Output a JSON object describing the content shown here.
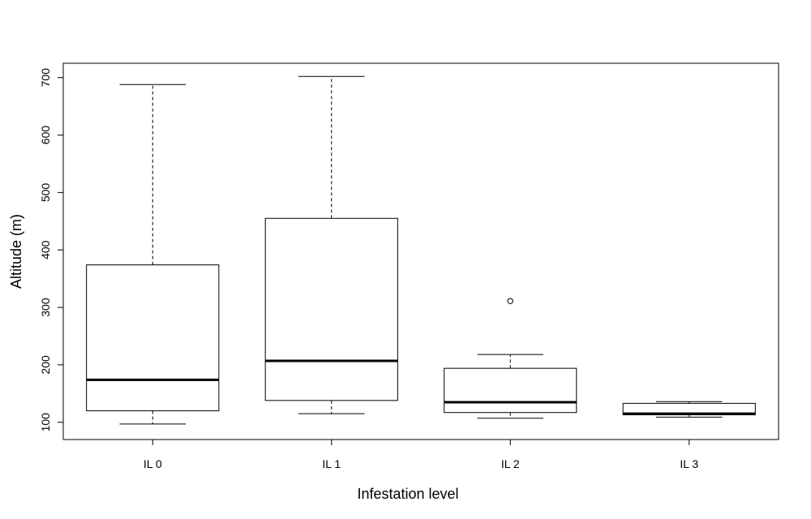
{
  "chart_data": {
    "type": "boxplot",
    "title": "",
    "xlabel": "Infestation level",
    "ylabel": "Altitude (m)",
    "ylim": [
      70,
      725
    ],
    "yticks": [
      100,
      200,
      300,
      400,
      500,
      600,
      700
    ],
    "grid": false,
    "categories": [
      "IL 0",
      "IL 1",
      "IL 2",
      "IL 3"
    ],
    "boxes": [
      {
        "category": "IL 0",
        "whisker_low": 97,
        "q1": 120,
        "median": 174,
        "q3": 374,
        "whisker_high": 688,
        "outliers": []
      },
      {
        "category": "IL 1",
        "whisker_low": 115,
        "q1": 138,
        "median": 207,
        "q3": 455,
        "whisker_high": 702,
        "outliers": []
      },
      {
        "category": "IL 2",
        "whisker_low": 107,
        "q1": 117,
        "median": 135,
        "q3": 194,
        "whisker_high": 218,
        "outliers": [
          311
        ]
      },
      {
        "category": "IL 3",
        "whisker_low": 109,
        "q1": 113,
        "median": 115,
        "q3": 133,
        "whisker_high": 136,
        "outliers": []
      }
    ]
  }
}
